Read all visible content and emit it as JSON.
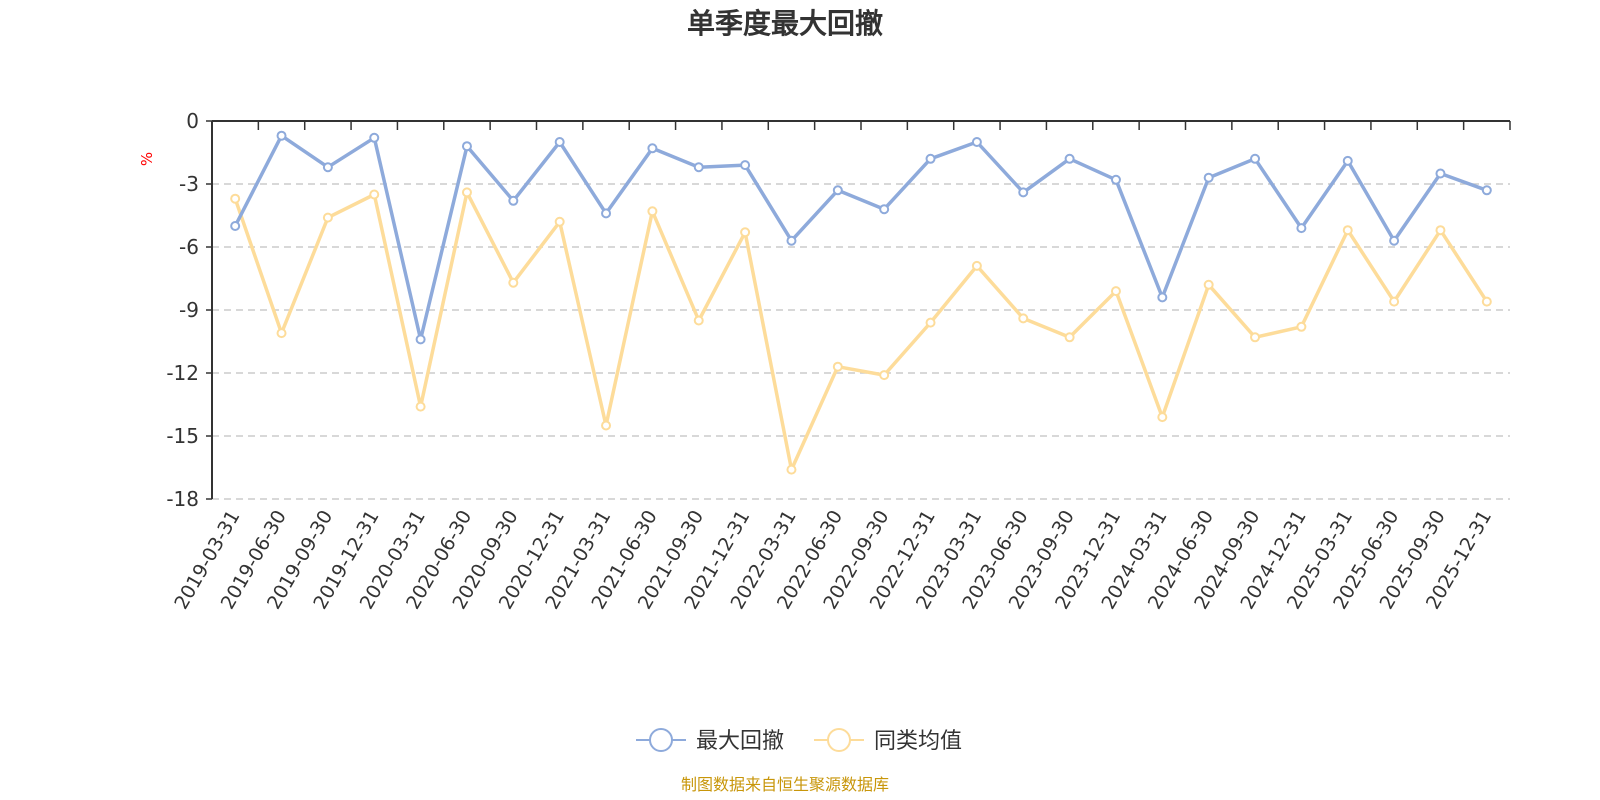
{
  "chart_data": {
    "type": "line",
    "title": "单季度最大回撤",
    "ylabel": "%",
    "ylim": [
      -18,
      0
    ],
    "yticks": [
      0,
      -3,
      -6,
      -9,
      -12,
      -15,
      -18
    ],
    "grid": true,
    "legend_position": "bottom-center",
    "categories": [
      "2019-03-31",
      "2019-06-30",
      "2019-09-30",
      "2019-12-31",
      "2020-03-31",
      "2020-06-30",
      "2020-09-30",
      "2020-12-31",
      "2021-03-31",
      "2021-06-30",
      "2021-09-30",
      "2021-12-31",
      "2022-03-31",
      "2022-06-30",
      "2022-09-30",
      "2022-12-31",
      "2023-03-31",
      "2023-06-30",
      "2023-09-30",
      "2023-12-31",
      "2024-03-31",
      "2024-06-30",
      "2024-09-30",
      "2024-12-31",
      "2025-03-31",
      "2025-06-30",
      "2025-09-30",
      "2025-12-31"
    ],
    "series": [
      {
        "name": "最大回撤",
        "color": "#8eaadb",
        "values": [
          -5.0,
          -0.7,
          -2.2,
          -0.8,
          -10.4,
          -1.2,
          -3.8,
          -1.0,
          -4.4,
          -1.3,
          -2.2,
          -2.1,
          -5.7,
          -3.3,
          -4.2,
          -1.8,
          -1.0,
          -3.4,
          -1.8,
          -2.8,
          -8.4,
          -2.7,
          -1.8,
          -5.1,
          -1.9,
          -5.7,
          -2.5,
          -3.3
        ]
      },
      {
        "name": "同类均值",
        "color": "#fddc9a",
        "values": [
          -3.7,
          -10.1,
          -4.6,
          -3.5,
          -13.6,
          -3.4,
          -7.7,
          -4.8,
          -14.5,
          -4.3,
          -9.5,
          -5.3,
          -16.6,
          -11.7,
          -12.1,
          -9.6,
          -6.9,
          -9.4,
          -10.3,
          -8.1,
          -14.1,
          -7.8,
          -10.3,
          -9.8,
          -5.2,
          -8.6,
          -5.2,
          -8.6
        ]
      }
    ]
  },
  "footer": {
    "source": "制图数据来自恒生聚源数据库"
  }
}
